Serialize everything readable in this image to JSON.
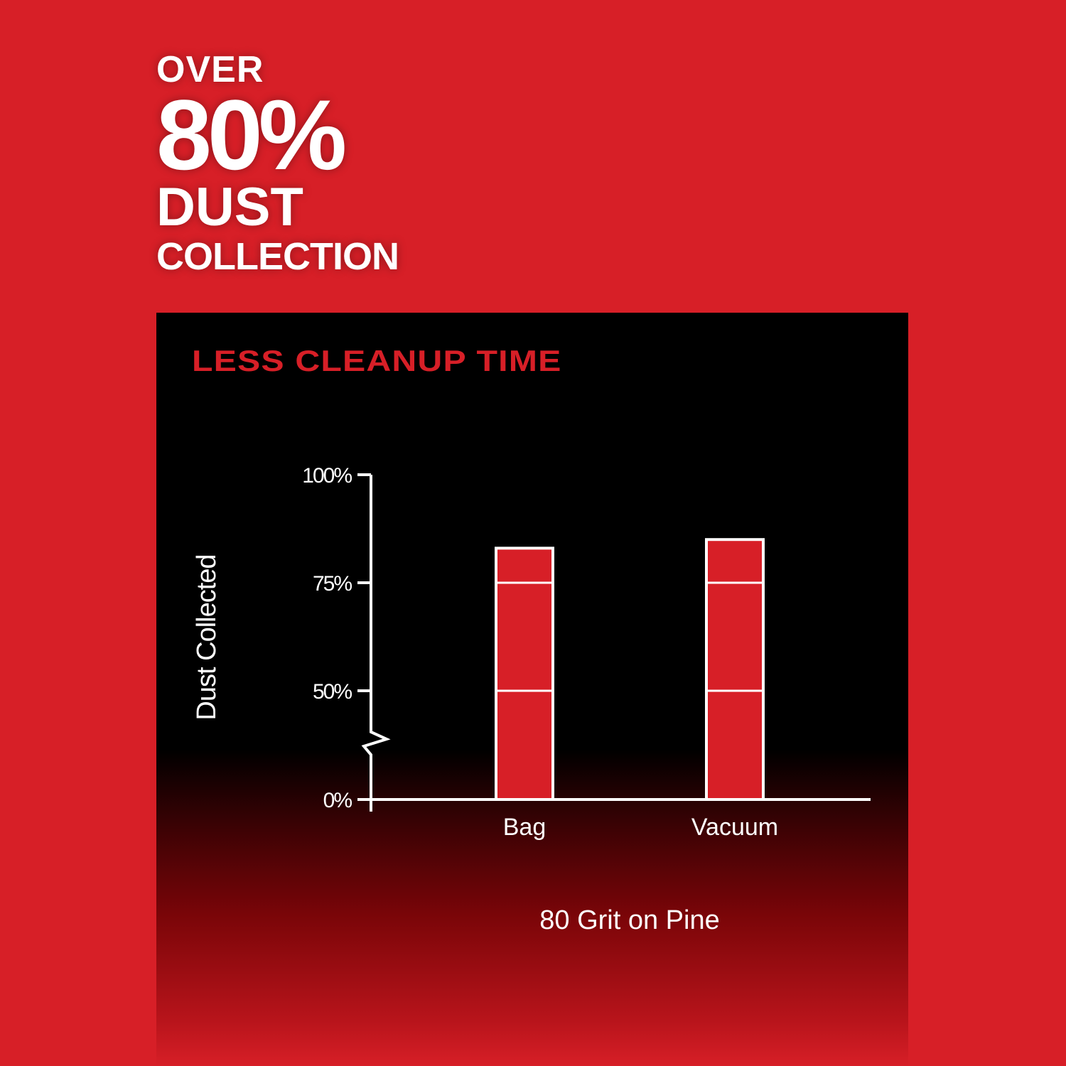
{
  "headline": {
    "line1": "OVER",
    "line2": "80%",
    "line3": "DUST",
    "line4": "COLLECTION"
  },
  "panel_title": "LESS CLEANUP TIME",
  "colors": {
    "background": "#d71f27",
    "bar_fill": "#d71f27",
    "panel": "#000000",
    "lines": "#ffffff"
  },
  "chart_data": {
    "type": "bar",
    "title": "LESS CLEANUP TIME",
    "categories": [
      "Bag",
      "Vacuum"
    ],
    "values": [
      83,
      85
    ],
    "xlabel": "80 Grit on Pine",
    "ylabel": "Dust Collected",
    "ylim": [
      0,
      100
    ],
    "axis_break": true,
    "yticks": [
      0,
      50,
      75,
      100
    ],
    "ytick_labels": [
      "0%",
      "50%",
      "75%",
      "100%"
    ],
    "bar_gridlines": [
      50,
      75
    ],
    "grid": false
  }
}
